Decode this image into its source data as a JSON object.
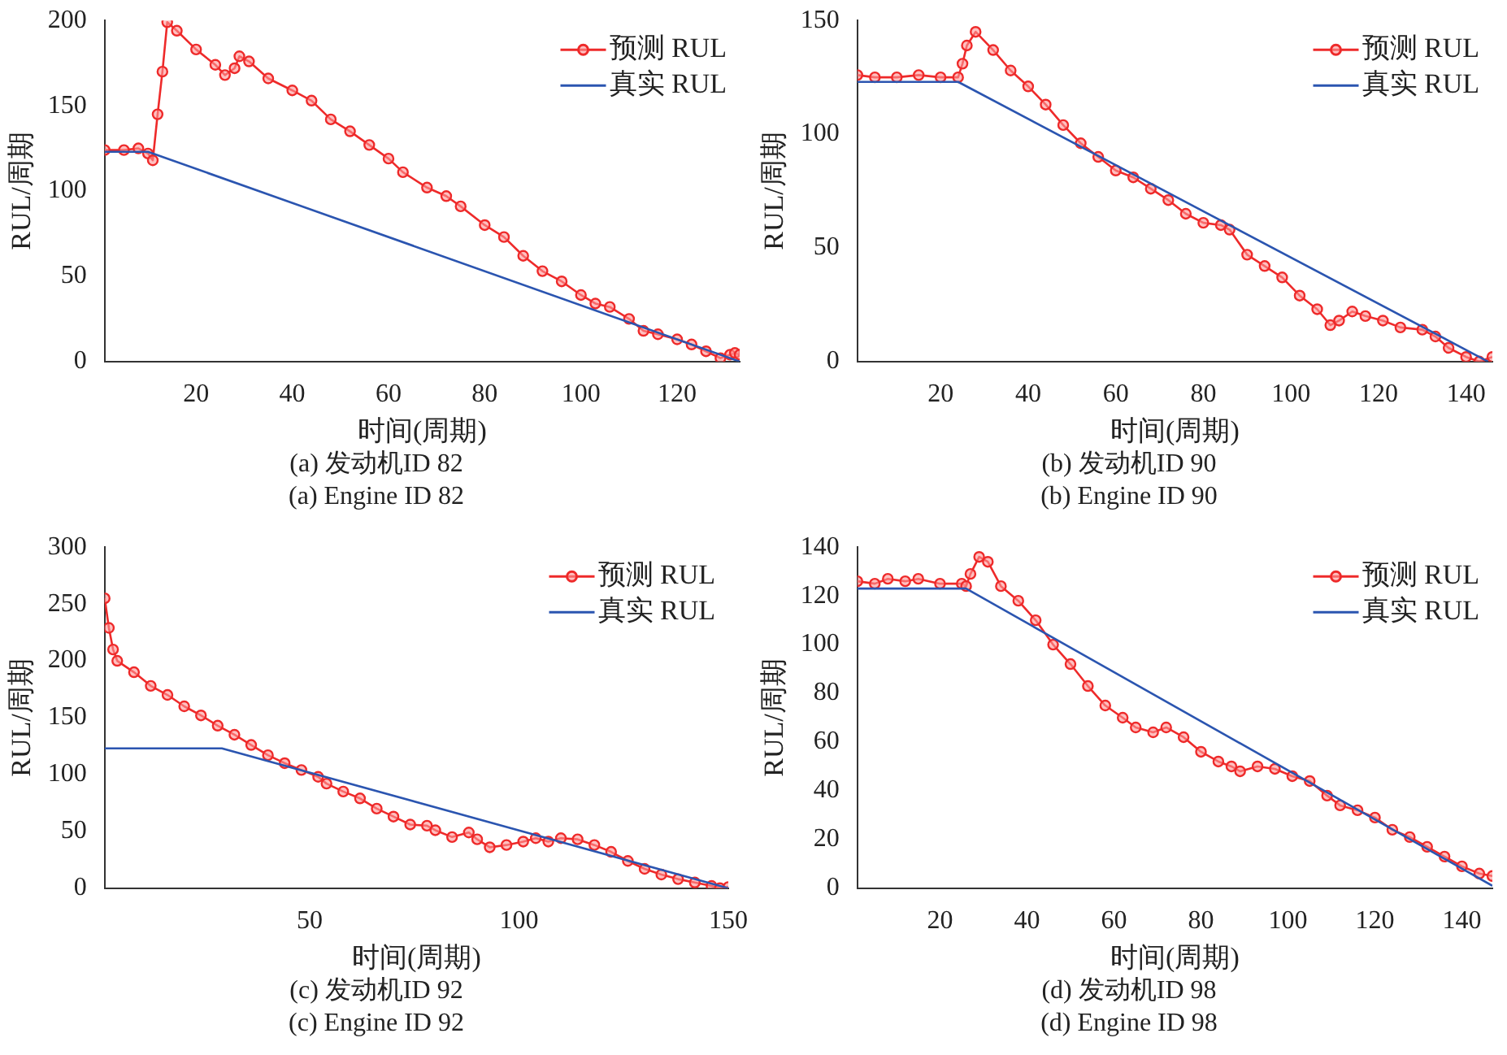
{
  "chart_data": [
    {
      "type": "line",
      "title": "(a) 发动机ID 82",
      "subtitle": "(a) Engine ID 82",
      "xlabel": "时间(周期)",
      "ylabel": "RUL/周期",
      "xlim": [
        1,
        133
      ],
      "xticks": [
        20,
        40,
        60,
        80,
        100,
        120
      ],
      "ylim": [
        0,
        200
      ],
      "yticks": [
        0,
        50,
        100,
        150,
        200
      ],
      "grid": false,
      "legend": "top right",
      "series": [
        {
          "name": "预测 RUL",
          "color": "#ee2a2a",
          "marker": "circle",
          "x": [
            1,
            5,
            8,
            10,
            11,
            12,
            13,
            14,
            16,
            20,
            24,
            26,
            28,
            29,
            31,
            35,
            40,
            44,
            48,
            52,
            56,
            60,
            63,
            68,
            72,
            75,
            80,
            84,
            88,
            92,
            96,
            100,
            103,
            106,
            110,
            113,
            116,
            120,
            123,
            126,
            129,
            131,
            132,
            133
          ],
          "values": [
            124,
            124,
            125,
            122,
            118,
            145,
            170,
            199,
            194,
            183,
            174,
            168,
            172,
            179,
            176,
            166,
            159,
            153,
            142,
            135,
            127,
            119,
            111,
            102,
            97,
            91,
            80,
            73,
            62,
            53,
            47,
            39,
            34,
            32,
            25,
            18,
            16,
            13,
            10,
            6,
            2,
            4,
            5,
            4
          ]
        },
        {
          "name": "真实 RUL",
          "color": "#2b55b0",
          "marker": "none",
          "x": [
            1,
            10,
            133
          ],
          "values": [
            123,
            123,
            0
          ]
        }
      ]
    },
    {
      "type": "line",
      "title": "(b) 发动机ID 90",
      "subtitle": "(b) Engine ID 90",
      "xlabel": "时间(周期)",
      "ylabel": "RUL/周期",
      "xlim": [
        1,
        146
      ],
      "xticks": [
        20,
        40,
        60,
        80,
        100,
        120,
        140
      ],
      "ylim": [
        0,
        150
      ],
      "yticks": [
        0,
        50,
        100,
        150
      ],
      "grid": false,
      "legend": "top right",
      "series": [
        {
          "name": "预测 RUL",
          "color": "#ee2a2a",
          "marker": "circle",
          "x": [
            1,
            5,
            10,
            15,
            20,
            24,
            25,
            26,
            28,
            32,
            36,
            40,
            44,
            48,
            52,
            56,
            60,
            64,
            68,
            72,
            76,
            80,
            84,
            86,
            90,
            94,
            98,
            102,
            106,
            109,
            111,
            114,
            117,
            121,
            125,
            130,
            133,
            136,
            140,
            143,
            146
          ],
          "values": [
            126,
            125,
            125,
            126,
            125,
            125,
            131,
            139,
            145,
            137,
            128,
            121,
            113,
            104,
            96,
            90,
            84,
            81,
            76,
            71,
            65,
            61,
            60,
            58,
            47,
            42,
            37,
            29,
            23,
            16,
            18,
            22,
            20,
            18,
            15,
            14,
            11,
            6,
            2,
            0,
            2
          ]
        },
        {
          "name": "真实 RUL",
          "color": "#2b55b0",
          "marker": "none",
          "x": [
            1,
            24,
            145
          ],
          "values": [
            123,
            123,
            0
          ]
        }
      ]
    },
    {
      "type": "line",
      "title": "(c) 发动机ID 92",
      "subtitle": "(c) Engine ID 92",
      "xlabel": "时间(周期)",
      "ylabel": "RUL/周期",
      "xlim": [
        1,
        150
      ],
      "xticks": [
        50,
        100,
        150
      ],
      "ylim": [
        0,
        300
      ],
      "yticks": [
        0,
        50,
        100,
        150,
        200,
        250,
        300
      ],
      "grid": false,
      "legend": "top right",
      "series": [
        {
          "name": "预测 RUL",
          "color": "#ee2a2a",
          "marker": "circle",
          "x": [
            1,
            2,
            3,
            4,
            8,
            12,
            16,
            20,
            24,
            28,
            32,
            36,
            40,
            44,
            48,
            52,
            54,
            58,
            62,
            66,
            70,
            74,
            78,
            80,
            84,
            88,
            90,
            93,
            97,
            101,
            104,
            107,
            110,
            114,
            118,
            122,
            126,
            130,
            134,
            138,
            142,
            146,
            148,
            150
          ],
          "values": [
            255,
            229,
            210,
            200,
            190,
            178,
            170,
            160,
            152,
            143,
            135,
            126,
            117,
            110,
            104,
            98,
            92,
            85,
            79,
            70,
            63,
            56,
            55,
            51,
            45,
            49,
            43,
            36,
            38,
            41,
            44,
            41,
            44,
            43,
            38,
            32,
            24,
            17,
            12,
            8,
            5,
            2,
            0,
            1
          ]
        },
        {
          "name": "真实 RUL",
          "color": "#2b55b0",
          "marker": "none",
          "x": [
            1,
            29,
            150
          ],
          "values": [
            123,
            123,
            0
          ]
        }
      ]
    },
    {
      "type": "line",
      "title": "(d) 发动机ID 98",
      "subtitle": "(d) Engine ID 98",
      "xlabel": "时间(周期)",
      "ylabel": "RUL/周期",
      "xlim": [
        1,
        147
      ],
      "xticks": [
        20,
        40,
        60,
        80,
        100,
        120,
        140
      ],
      "ylim": [
        0,
        140
      ],
      "yticks": [
        0,
        20,
        40,
        60,
        80,
        100,
        120,
        140
      ],
      "grid": false,
      "legend": "top right",
      "series": [
        {
          "name": "预测 RUL",
          "color": "#ee2a2a",
          "marker": "circle",
          "x": [
            1,
            5,
            8,
            12,
            15,
            20,
            25,
            26,
            27,
            29,
            31,
            34,
            38,
            42,
            46,
            50,
            54,
            58,
            62,
            65,
            69,
            72,
            76,
            80,
            84,
            87,
            89,
            93,
            97,
            101,
            105,
            109,
            112,
            116,
            120,
            124,
            128,
            132,
            136,
            140,
            144,
            147
          ],
          "values": [
            126,
            125,
            127,
            126,
            127,
            125,
            125,
            124,
            129,
            136,
            134,
            124,
            118,
            110,
            100,
            92,
            83,
            75,
            70,
            66,
            64,
            66,
            62,
            56,
            52,
            50,
            48,
            50,
            49,
            46,
            44,
            38,
            34,
            32,
            29,
            24,
            21,
            17,
            13,
            9,
            6,
            5
          ]
        },
        {
          "name": "真实 RUL",
          "color": "#2b55b0",
          "marker": "none",
          "x": [
            1,
            26,
            147
          ],
          "values": [
            123,
            123,
            1
          ]
        }
      ]
    }
  ]
}
